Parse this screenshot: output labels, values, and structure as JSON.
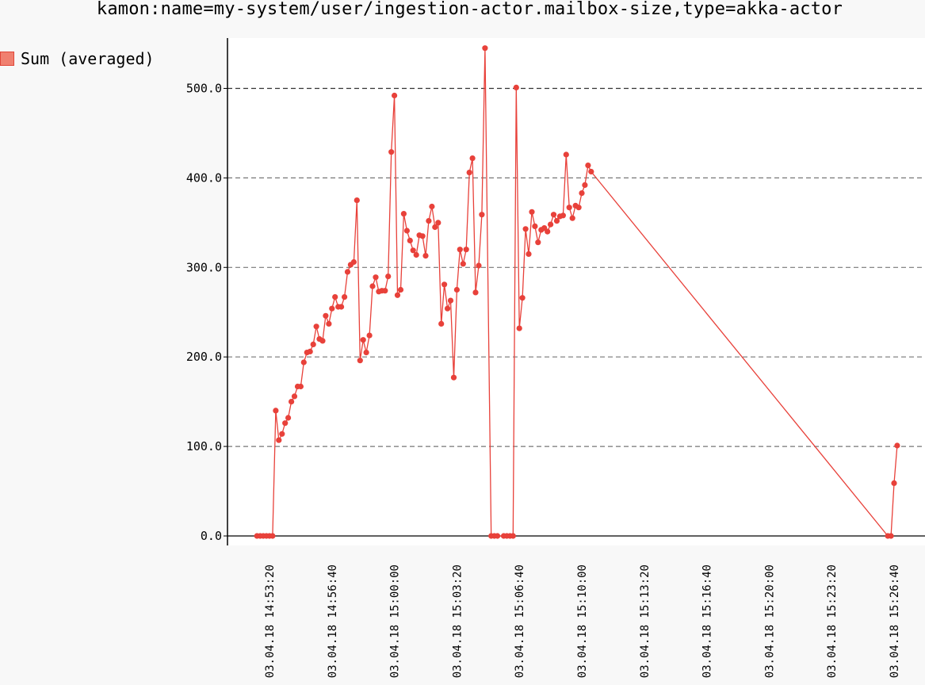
{
  "chart_data": {
    "type": "line",
    "title": "kamon:name=my-system/user/ingestion-actor.mailbox-size,type=akka-actor",
    "xlabel": "",
    "ylabel": "",
    "ylim": [
      0,
      550
    ],
    "grid": true,
    "legend": "top-left",
    "colors": {
      "series": "#e8413a",
      "grid": "#777777",
      "axis": "#000000"
    },
    "y_ticks": [
      "0.0",
      "100.0",
      "200.0",
      "300.0",
      "400.0",
      "500.0"
    ],
    "y_tick_values": [
      0,
      100,
      200,
      300,
      400,
      500
    ],
    "x_ticks": [
      "03.04.18 14:53:20",
      "03.04.18 14:56:40",
      "03.04.18 15:00:00",
      "03.04.18 15:03:20",
      "03.04.18 15:06:40",
      "03.04.18 15:10:00",
      "03.04.18 15:13:20",
      "03.04.18 15:16:40",
      "03.04.18 15:20:00",
      "03.04.18 15:23:20",
      "03.04.18 15:26:40"
    ],
    "x_range": [
      "03.04.18 14:52:20",
      "03.04.18 15:28:00"
    ],
    "series": [
      {
        "name": "Sum (averaged)",
        "points": [
          [
            "03.04.18 14:52:40",
            0
          ],
          [
            "03.04.18 14:52:50",
            0
          ],
          [
            "03.04.18 14:53:00",
            0
          ],
          [
            "03.04.18 14:53:10",
            0
          ],
          [
            "03.04.18 14:53:20",
            0
          ],
          [
            "03.04.18 14:53:30",
            0
          ],
          [
            "03.04.18 14:53:40",
            140
          ],
          [
            "03.04.18 14:53:50",
            107
          ],
          [
            "03.04.18 14:54:00",
            114
          ],
          [
            "03.04.18 14:54:10",
            126
          ],
          [
            "03.04.18 14:54:20",
            132
          ],
          [
            "03.04.18 14:54:30",
            150
          ],
          [
            "03.04.18 14:54:40",
            156
          ],
          [
            "03.04.18 14:54:50",
            167
          ],
          [
            "03.04.18 14:55:00",
            167
          ],
          [
            "03.04.18 14:55:10",
            194
          ],
          [
            "03.04.18 14:55:20",
            205
          ],
          [
            "03.04.18 14:55:30",
            206
          ],
          [
            "03.04.18 14:55:40",
            214
          ],
          [
            "03.04.18 14:55:50",
            234
          ],
          [
            "03.04.18 14:56:00",
            220
          ],
          [
            "03.04.18 14:56:10",
            218
          ],
          [
            "03.04.18 14:56:20",
            246
          ],
          [
            "03.04.18 14:56:30",
            237
          ],
          [
            "03.04.18 14:56:40",
            254
          ],
          [
            "03.04.18 14:56:50",
            267
          ],
          [
            "03.04.18 14:57:00",
            256
          ],
          [
            "03.04.18 14:57:10",
            256
          ],
          [
            "03.04.18 14:57:20",
            267
          ],
          [
            "03.04.18 14:57:30",
            295
          ],
          [
            "03.04.18 14:57:40",
            303
          ],
          [
            "03.04.18 14:57:50",
            306
          ],
          [
            "03.04.18 14:58:00",
            375
          ],
          [
            "03.04.18 14:58:10",
            196
          ],
          [
            "03.04.18 14:58:20",
            219
          ],
          [
            "03.04.18 14:58:30",
            205
          ],
          [
            "03.04.18 14:58:40",
            224
          ],
          [
            "03.04.18 14:58:50",
            279
          ],
          [
            "03.04.18 14:59:00",
            289
          ],
          [
            "03.04.18 14:59:10",
            273
          ],
          [
            "03.04.18 14:59:20",
            274
          ],
          [
            "03.04.18 14:59:30",
            274
          ],
          [
            "03.04.18 14:59:40",
            290
          ],
          [
            "03.04.18 14:59:50",
            429
          ],
          [
            "03.04.18 15:00:00",
            492
          ],
          [
            "03.04.18 15:00:10",
            269
          ],
          [
            "03.04.18 15:00:20",
            275
          ],
          [
            "03.04.18 15:00:30",
            360
          ],
          [
            "03.04.18 15:00:40",
            341
          ],
          [
            "03.04.18 15:00:50",
            330
          ],
          [
            "03.04.18 15:01:00",
            319
          ],
          [
            "03.04.18 15:01:10",
            314
          ],
          [
            "03.04.18 15:01:20",
            336
          ],
          [
            "03.04.18 15:01:30",
            335
          ],
          [
            "03.04.18 15:01:40",
            313
          ],
          [
            "03.04.18 15:01:50",
            352
          ],
          [
            "03.04.18 15:02:00",
            368
          ],
          [
            "03.04.18 15:02:10",
            345
          ],
          [
            "03.04.18 15:02:20",
            350
          ],
          [
            "03.04.18 15:02:30",
            237
          ],
          [
            "03.04.18 15:02:40",
            281
          ],
          [
            "03.04.18 15:02:50",
            254
          ],
          [
            "03.04.18 15:03:00",
            263
          ],
          [
            "03.04.18 15:03:10",
            177
          ],
          [
            "03.04.18 15:03:20",
            275
          ],
          [
            "03.04.18 15:03:30",
            320
          ],
          [
            "03.04.18 15:03:40",
            304
          ],
          [
            "03.04.18 15:03:50",
            320
          ],
          [
            "03.04.18 15:04:00",
            406
          ],
          [
            "03.04.18 15:04:10",
            422
          ],
          [
            "03.04.18 15:04:20",
            272
          ],
          [
            "03.04.18 15:04:30",
            302
          ],
          [
            "03.04.18 15:04:40",
            359
          ],
          [
            "03.04.18 15:04:50",
            545
          ],
          [
            "03.04.18 15:05:10",
            0
          ],
          [
            "03.04.18 15:05:20",
            0
          ],
          [
            "03.04.18 15:05:30",
            0
          ],
          [
            "03.04.18 15:05:50",
            0
          ],
          [
            "03.04.18 15:06:00",
            0
          ],
          [
            "03.04.18 15:06:10",
            0
          ],
          [
            "03.04.18 15:06:20",
            0
          ],
          [
            "03.04.18 15:06:30",
            501
          ],
          [
            "03.04.18 15:06:40",
            232
          ],
          [
            "03.04.18 15:06:50",
            266
          ],
          [
            "03.04.18 15:07:00",
            343
          ],
          [
            "03.04.18 15:07:10",
            315
          ],
          [
            "03.04.18 15:07:20",
            362
          ],
          [
            "03.04.18 15:07:30",
            346
          ],
          [
            "03.04.18 15:07:40",
            328
          ],
          [
            "03.04.18 15:07:50",
            342
          ],
          [
            "03.04.18 15:08:00",
            344
          ],
          [
            "03.04.18 15:08:10",
            340
          ],
          [
            "03.04.18 15:08:20",
            348
          ],
          [
            "03.04.18 15:08:30",
            359
          ],
          [
            "03.04.18 15:08:40",
            352
          ],
          [
            "03.04.18 15:08:50",
            357
          ],
          [
            "03.04.18 15:09:00",
            358
          ],
          [
            "03.04.18 15:09:10",
            426
          ],
          [
            "03.04.18 15:09:20",
            367
          ],
          [
            "03.04.18 15:09:30",
            355
          ],
          [
            "03.04.18 15:09:40",
            369
          ],
          [
            "03.04.18 15:09:50",
            367
          ],
          [
            "03.04.18 15:10:00",
            383
          ],
          [
            "03.04.18 15:10:10",
            392
          ],
          [
            "03.04.18 15:10:20",
            414
          ],
          [
            "03.04.18 15:10:30",
            407
          ],
          [
            "03.04.18 15:26:20",
            0
          ],
          [
            "03.04.18 15:26:30",
            0
          ],
          [
            "03.04.18 15:26:40",
            59
          ],
          [
            "03.04.18 15:26:50",
            101
          ]
        ]
      }
    ]
  }
}
